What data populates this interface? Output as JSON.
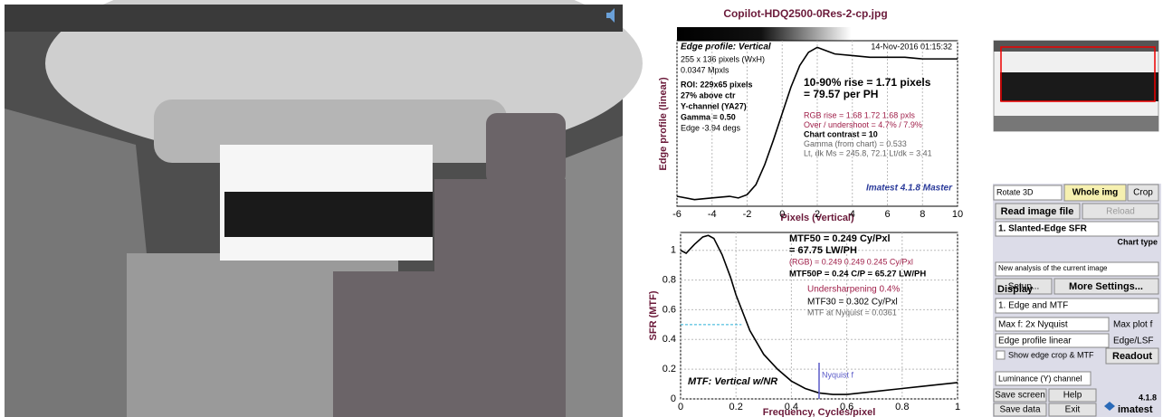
{
  "title": "Copilot-HDQ2500-0Res-2-cp.jpg",
  "edge_plot": {
    "type": "line",
    "title": "Edge profile: Vertical",
    "date": "14-Nov-2016 01:15:32",
    "xlabel": "Pixels (Vertical)",
    "ylabel": "Edge profile (linear)",
    "color": "#000000",
    "x": [
      -6,
      -5,
      -4,
      -3,
      -2.5,
      -2,
      -1.5,
      -1,
      -0.5,
      0,
      0.5,
      1,
      1.5,
      2,
      2.5,
      3,
      4,
      5,
      6,
      7,
      8,
      9,
      10
    ],
    "values": [
      0.06,
      0.04,
      0.05,
      0.06,
      0.05,
      0.07,
      0.13,
      0.25,
      0.4,
      0.56,
      0.72,
      0.85,
      0.93,
      0.96,
      0.94,
      0.92,
      0.91,
      0.9,
      0.9,
      0.9,
      0.89,
      0.89,
      0.89
    ],
    "xlim": [
      -6,
      10
    ],
    "xticks": [
      -6,
      -4,
      -2,
      0,
      2,
      4,
      6,
      8,
      10
    ],
    "ylim": [
      0,
      1
    ],
    "notes_left": [
      "255 x 136 pixels (WxH)",
      "0.0347 Mpxls",
      "ROI:  229x65 pixels",
      "27% above ctr",
      "Y-channel  (YA27)",
      "Gamma = 0.50",
      "Edge -3.94 degs"
    ],
    "notes_right": [
      "10-90% rise = 1.71 pixels",
      "= 79.57 per PH",
      "RGB rise = 1.68  1.72  1.68 pxls",
      "Over / undershoot = 4.7% / 7.9%",
      "Chart contrast = 10",
      "Gamma (from chart) = 0.533",
      "Lt, dk Ms = 245.8, 72.1   Lt/dk = 3.41"
    ],
    "watermark": "Imatest 4.1.8 Master"
  },
  "mtf_plot": {
    "type": "line",
    "title": "MTF: Vertical w/NR",
    "xlabel": "Frequency, Cycles/pixel",
    "ylabel": "SFR (MTF)",
    "color": "#000000",
    "x": [
      0,
      0.02,
      0.05,
      0.08,
      0.1,
      0.12,
      0.15,
      0.18,
      0.2,
      0.25,
      0.3,
      0.35,
      0.4,
      0.45,
      0.5,
      0.55,
      0.6,
      0.7,
      0.8,
      0.9,
      1.0
    ],
    "values": [
      1.0,
      0.98,
      1.04,
      1.09,
      1.1,
      1.08,
      0.97,
      0.82,
      0.7,
      0.46,
      0.3,
      0.2,
      0.12,
      0.07,
      0.04,
      0.03,
      0.03,
      0.05,
      0.07,
      0.09,
      0.11
    ],
    "xlim": [
      0,
      1
    ],
    "xticks": [
      0,
      0.2,
      0.4,
      0.6,
      0.8,
      1
    ],
    "ylim": [
      0,
      1.12
    ],
    "yticks": [
      0,
      0.2,
      0.4,
      0.6,
      0.8,
      1
    ],
    "mtf50_level": 0.5,
    "nyquist": 0.5,
    "nyquist_label": "Nyquist f",
    "notes": [
      "MTF50 = 0.249 Cy/Pxl",
      "= 67.75 LW/PH",
      "(RGB) = 0.249  0.249  0.245 Cy/Pxl",
      "MTF50P = 0.24 C/P = 65.27 LW/PH",
      "Undersharpening  0.4%",
      "MTF30 = 0.302 Cy/Pxl",
      "MTF at Nyquist = 0.0361"
    ]
  },
  "controls": {
    "rotate": "Rotate 3D",
    "whole_img": "Whole img",
    "crop": "Crop",
    "read_image": "Read image file",
    "reload": "Reload",
    "chart": "1. Slanted-Edge SFR",
    "chart_type": "Chart type",
    "analysis": "New analysis of the current image",
    "setup": "Setup...",
    "more_settings": "More Settings...",
    "display": "Display",
    "display_mode": "1. Edge and MTF",
    "max_f": "Max f:   2x Nyquist",
    "max_plot_f": "Max plot f",
    "edge_profile": "Edge profile linear",
    "edge_lsf": "Edge/LSF",
    "show_edge": "Show edge crop & MTF",
    "readout": "Readout",
    "channel": "Luminance (Y) channel",
    "save_screen": "Save screen",
    "help": "Help",
    "version": "4.1.8",
    "save_data": "Save data",
    "exit": "Exit",
    "brand": "imatest"
  }
}
